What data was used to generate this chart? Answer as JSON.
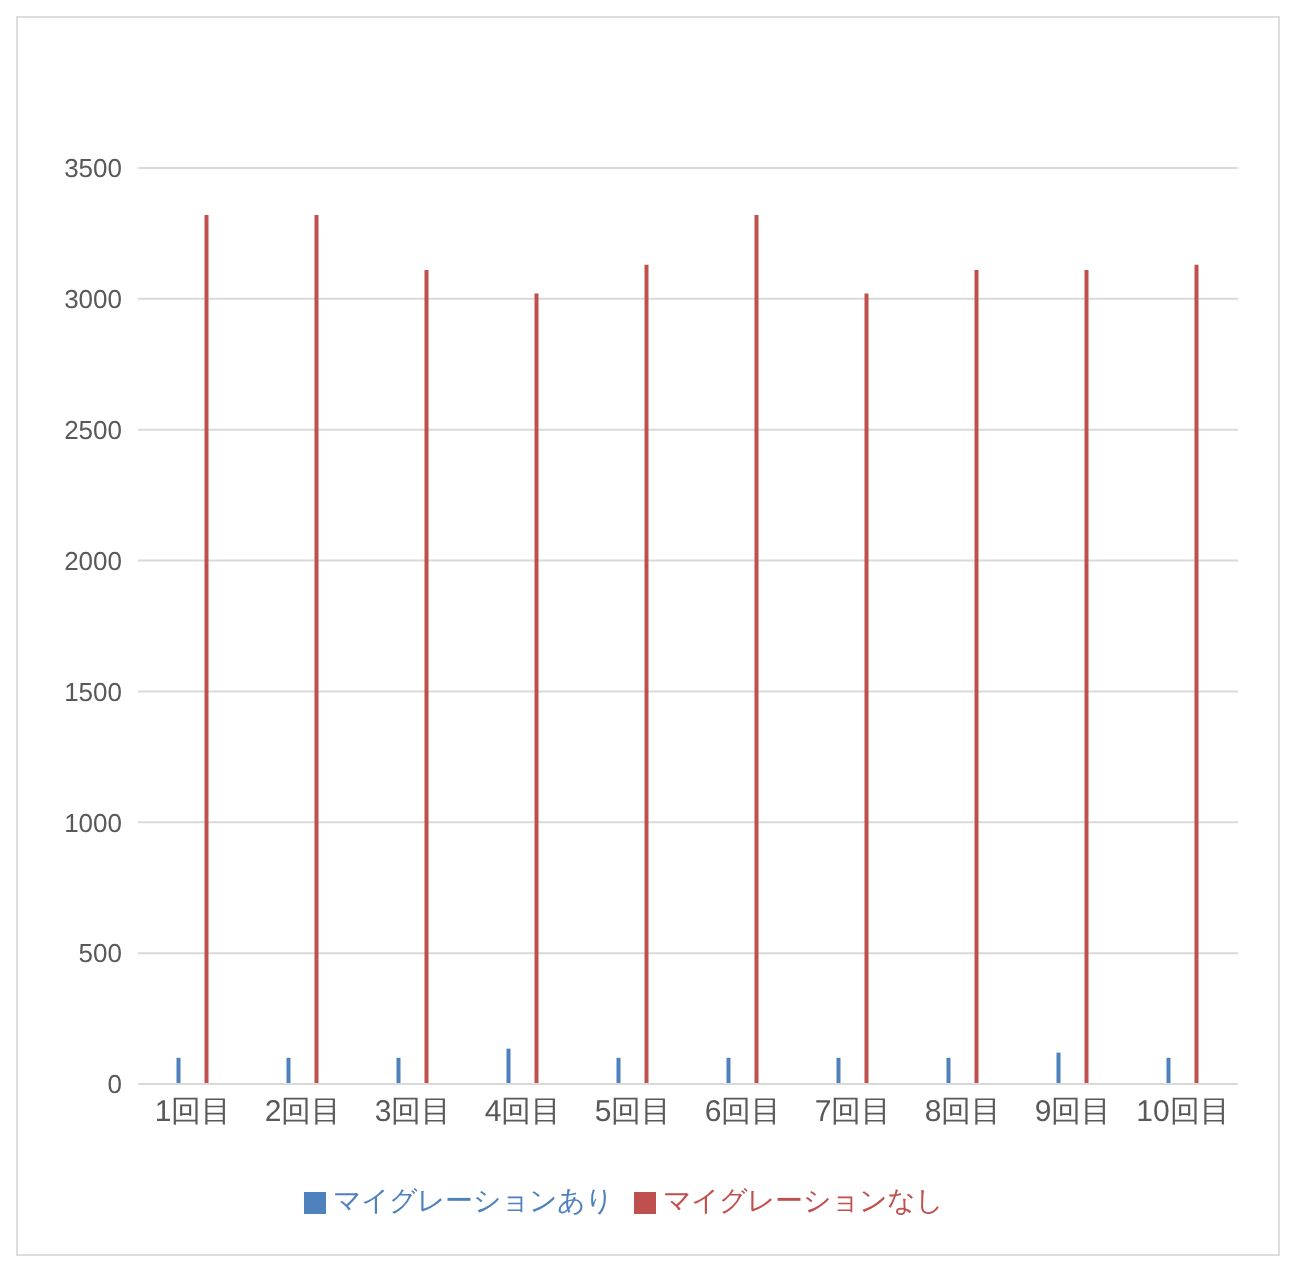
{
  "chart_data": {
    "type": "bar",
    "categories": [
      "1回目",
      "2回目",
      "3回目",
      "4回目",
      "5回目",
      "6回目",
      "7回目",
      "8回目",
      "9回目",
      "10回目"
    ],
    "series": [
      {
        "name": "マイグレーションあり",
        "color": "#4f81bd",
        "values": [
          100,
          100,
          100,
          135,
          100,
          100,
          100,
          100,
          120,
          100
        ]
      },
      {
        "name": "マイグレーションなし",
        "color": "#c0504d",
        "values": [
          3320,
          3320,
          3110,
          3020,
          3130,
          3320,
          3020,
          3110,
          3110,
          3130
        ]
      }
    ],
    "ylim": [
      0,
      3500
    ],
    "yticks": [
      0,
      500,
      1000,
      1500,
      2000,
      2500,
      3000,
      3500
    ],
    "grid": "y",
    "legend": "bottom"
  }
}
